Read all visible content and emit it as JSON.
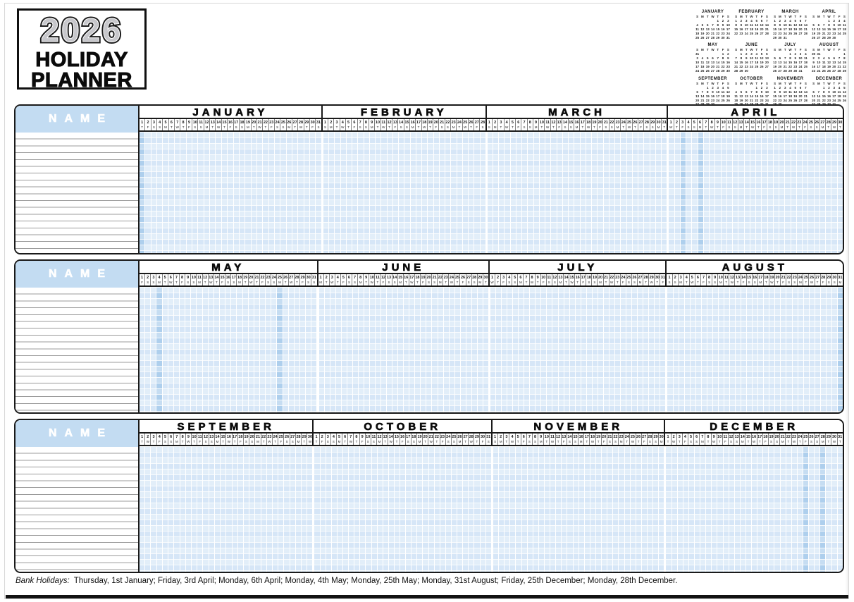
{
  "logo": {
    "year": "2026",
    "title_line1": "HOLIDAY",
    "title_line2": "PLANNER"
  },
  "planner": {
    "name_label": "NAME",
    "dow_letters": [
      "S",
      "M",
      "T",
      "W",
      "T",
      "F",
      "S"
    ],
    "months": [
      {
        "name": "JANUARY",
        "days": 31,
        "first_dow": 4,
        "holidays": [
          1
        ]
      },
      {
        "name": "FEBRUARY",
        "days": 28,
        "first_dow": 0,
        "holidays": []
      },
      {
        "name": "MARCH",
        "days": 31,
        "first_dow": 0,
        "holidays": []
      },
      {
        "name": "APRIL",
        "days": 30,
        "first_dow": 3,
        "holidays": [
          3,
          6
        ]
      },
      {
        "name": "MAY",
        "days": 31,
        "first_dow": 5,
        "holidays": [
          4,
          25
        ]
      },
      {
        "name": "JUNE",
        "days": 30,
        "first_dow": 1,
        "holidays": []
      },
      {
        "name": "JULY",
        "days": 31,
        "first_dow": 3,
        "holidays": []
      },
      {
        "name": "AUGUST",
        "days": 31,
        "first_dow": 6,
        "holidays": [
          31
        ]
      },
      {
        "name": "SEPTEMBER",
        "days": 30,
        "first_dow": 2,
        "holidays": []
      },
      {
        "name": "OCTOBER",
        "days": 31,
        "first_dow": 4,
        "holidays": []
      },
      {
        "name": "NOVEMBER",
        "days": 30,
        "first_dow": 0,
        "holidays": []
      },
      {
        "name": "DECEMBER",
        "days": 31,
        "first_dow": 2,
        "holidays": [
          25,
          28
        ]
      }
    ],
    "rows": [
      [
        0,
        1,
        2,
        3
      ],
      [
        4,
        5,
        6,
        7
      ],
      [
        8,
        9,
        10,
        11
      ]
    ]
  },
  "mini_calendars": {
    "dow_header": [
      "S",
      "M",
      "T",
      "W",
      "T",
      "F",
      "S"
    ]
  },
  "footer": {
    "label": "Bank Holidays:",
    "text": "Thursday, 1st January; Friday, 3rd April; Monday, 6th April; Monday, 4th May; Monday, 25th May; Monday, 31st August; Friday, 25th December; Monday, 28th December."
  },
  "colors": {
    "accent_blue": "#c3dcf2",
    "grid_blue": "#d6e6f7",
    "holiday_blue": "#aecfed",
    "line_gray": "#9b9b9b"
  }
}
